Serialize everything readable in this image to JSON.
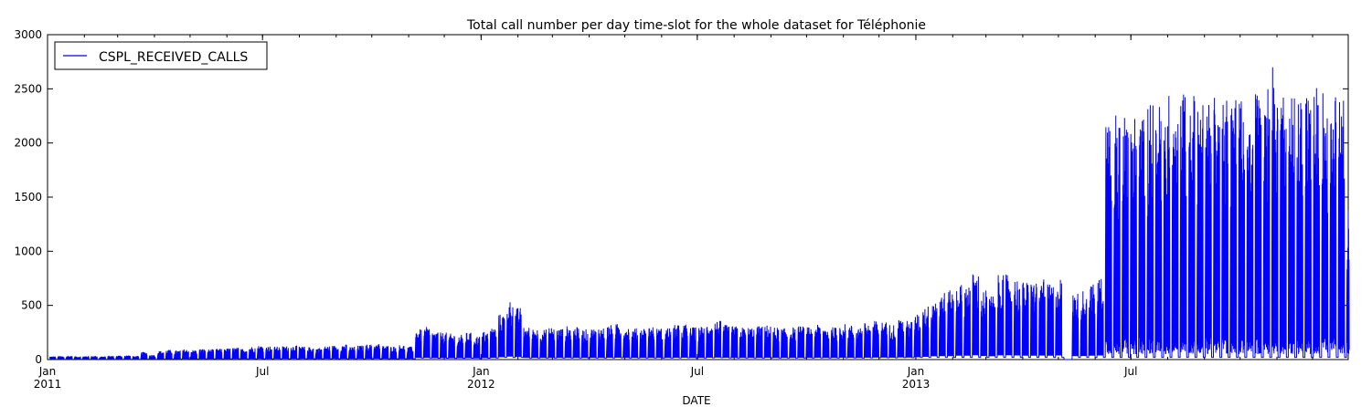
{
  "chart_data": {
    "type": "line",
    "title": "Total call number per day time-slot for the whole dataset for Téléphonie",
    "xlabel": "DATE",
    "ylabel": "",
    "ylim": [
      0,
      3000
    ],
    "xlim": [
      "2011-01-01",
      "2013-12-31"
    ],
    "grid": false,
    "legend_position": "top-left",
    "yticks": [
      0,
      500,
      1000,
      1500,
      2000,
      2500,
      3000
    ],
    "ytick_labels": [
      "0",
      "500",
      "1000",
      "1500",
      "2000",
      "2500",
      "3000"
    ],
    "xticks": [
      {
        "date": "2011-01-01",
        "line1": "Jan",
        "line2": "2011"
      },
      {
        "date": "2011-07-01",
        "line1": "Jul",
        "line2": ""
      },
      {
        "date": "2012-01-01",
        "line1": "Jan",
        "line2": "2012"
      },
      {
        "date": "2012-07-01",
        "line1": "Jul",
        "line2": ""
      },
      {
        "date": "2013-01-01",
        "line1": "Jan",
        "line2": "2013"
      },
      {
        "date": "2013-07-01",
        "line1": "Jul",
        "line2": ""
      }
    ],
    "series": [
      {
        "name": "CSPL_RECEIVED_CALLS",
        "color": "#0000ff",
        "weekly_peaks": {
          "x": [
            "2011-01-03",
            "2011-01-10",
            "2011-01-17",
            "2011-01-24",
            "2011-01-31",
            "2011-02-07",
            "2011-02-14",
            "2011-02-21",
            "2011-02-28",
            "2011-03-07",
            "2011-03-14",
            "2011-03-21",
            "2011-03-28",
            "2011-04-04",
            "2011-04-11",
            "2011-04-18",
            "2011-04-25",
            "2011-05-02",
            "2011-05-09",
            "2011-05-16",
            "2011-05-23",
            "2011-05-30",
            "2011-06-06",
            "2011-06-13",
            "2011-06-20",
            "2011-06-27",
            "2011-07-04",
            "2011-07-11",
            "2011-07-18",
            "2011-07-25",
            "2011-08-01",
            "2011-08-08",
            "2011-08-15",
            "2011-08-22",
            "2011-08-29",
            "2011-09-05",
            "2011-09-12",
            "2011-09-19",
            "2011-09-26",
            "2011-10-03",
            "2011-10-10",
            "2011-10-17",
            "2011-10-24",
            "2011-10-31",
            "2011-11-07",
            "2011-11-14",
            "2011-11-21",
            "2011-11-28",
            "2011-12-05",
            "2011-12-12",
            "2011-12-19",
            "2011-12-26",
            "2012-01-02",
            "2012-01-09",
            "2012-01-16",
            "2012-01-23",
            "2012-01-30",
            "2012-02-06",
            "2012-02-13",
            "2012-02-20",
            "2012-02-27",
            "2012-03-05",
            "2012-03-12",
            "2012-03-19",
            "2012-03-26",
            "2012-04-02",
            "2012-04-09",
            "2012-04-16",
            "2012-04-23",
            "2012-04-30",
            "2012-05-07",
            "2012-05-14",
            "2012-05-21",
            "2012-05-28",
            "2012-06-04",
            "2012-06-11",
            "2012-06-18",
            "2012-06-25",
            "2012-07-02",
            "2012-07-09",
            "2012-07-16",
            "2012-07-23",
            "2012-07-30",
            "2012-08-06",
            "2012-08-13",
            "2012-08-20",
            "2012-08-27",
            "2012-09-03",
            "2012-09-10",
            "2012-09-17",
            "2012-09-24",
            "2012-10-01",
            "2012-10-08",
            "2012-10-15",
            "2012-10-22",
            "2012-10-29",
            "2012-11-05",
            "2012-11-12",
            "2012-11-19",
            "2012-11-26",
            "2012-12-03",
            "2012-12-10",
            "2012-12-17",
            "2012-12-24",
            "2012-12-31",
            "2013-01-07",
            "2013-01-14",
            "2013-01-21",
            "2013-01-28",
            "2013-02-04",
            "2013-02-11",
            "2013-02-18",
            "2013-02-25",
            "2013-03-04",
            "2013-03-11",
            "2013-03-18",
            "2013-03-25",
            "2013-04-01",
            "2013-04-08",
            "2013-04-15",
            "2013-04-22",
            "2013-04-29",
            "2013-05-06",
            "2013-05-13",
            "2013-05-20",
            "2013-05-27",
            "2013-06-03",
            "2013-06-10",
            "2013-06-17",
            "2013-06-24",
            "2013-07-01",
            "2013-07-08",
            "2013-07-15",
            "2013-07-22",
            "2013-07-29",
            "2013-08-05",
            "2013-08-12",
            "2013-08-19",
            "2013-08-26",
            "2013-09-02",
            "2013-09-09",
            "2013-09-16",
            "2013-09-23",
            "2013-09-30",
            "2013-10-07",
            "2013-10-14",
            "2013-10-21",
            "2013-10-28",
            "2013-11-04",
            "2013-11-11",
            "2013-11-18",
            "2013-11-25",
            "2013-12-02",
            "2013-12-09",
            "2013-12-16",
            "2013-12-23",
            "2013-12-30"
          ],
          "y": [
            30,
            32,
            35,
            30,
            33,
            34,
            30,
            35,
            38,
            40,
            32,
            70,
            45,
            80,
            90,
            85,
            95,
            90,
            100,
            95,
            100,
            105,
            110,
            100,
            120,
            130,
            125,
            120,
            125,
            130,
            120,
            115,
            110,
            125,
            130,
            140,
            120,
            130,
            140,
            150,
            130,
            125,
            135,
            120,
            280,
            300,
            260,
            250,
            240,
            230,
            250,
            220,
            260,
            300,
            420,
            550,
            480,
            300,
            290,
            280,
            300,
            290,
            310,
            300,
            280,
            290,
            300,
            320,
            330,
            310,
            290,
            300,
            310,
            290,
            300,
            320,
            330,
            300,
            310,
            340,
            360,
            320,
            310,
            300,
            300,
            310,
            320,
            300,
            290,
            300,
            310,
            300,
            320,
            310,
            300,
            330,
            320,
            310,
            340,
            360,
            350,
            330,
            380,
            360,
            420,
            500,
            600,
            630,
            640,
            700,
            720,
            800,
            650,
            600,
            780,
            790,
            760,
            720,
            730,
            740,
            700,
            760,
            0,
            620,
            650,
            700,
            760,
            2300,
            2350,
            2280,
            2300,
            2300,
            2350,
            2400,
            2450,
            2500,
            2550,
            2450,
            2400,
            2520,
            2480,
            2500,
            2400,
            2430,
            2460,
            2520,
            2560,
            2700,
            2500,
            2450,
            2480,
            2500,
            2520,
            2460,
            2450,
            2430,
            1400
          ],
          "sampled_y": "approximate"
        }
      }
    ]
  }
}
